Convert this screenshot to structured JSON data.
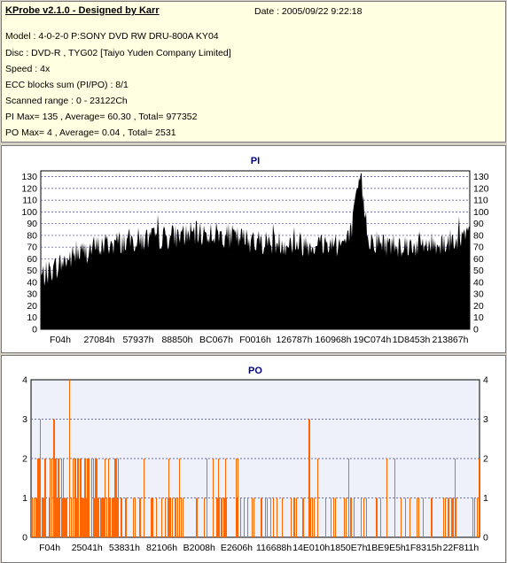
{
  "header": {
    "app_title": "KProbe v2.1.0 - Designed by Karr",
    "date": "Date : 2005/09/22 9:22:18",
    "lines": [
      "Model : 4-0-2-0 P:SONY     DVD RW DRU-800A  KY04",
      "Disc : DVD-R , TYG02 [Taiyo Yuden Company Limited]",
      "Speed : 4x",
      "ECC blocks sum (PI/PO) : 8/1",
      "Scanned range : 0 - 23122Ch",
      "PI Max= 135 , Average= 60.30 , Total= 977352",
      "PO Max= 4 , Average= 0.04 , Total= 2531"
    ]
  },
  "colors": {
    "pi_fill": "#000000",
    "po_fill": "#ff6600",
    "grid": "#4040a0",
    "title": "#000080",
    "plot_bg_po": "#eef0fa"
  },
  "chart_data": [
    {
      "type": "bar",
      "title": "PI",
      "ylim": [
        0,
        135
      ],
      "yticks": [
        0,
        10,
        20,
        30,
        40,
        50,
        60,
        70,
        80,
        90,
        100,
        110,
        120,
        130
      ],
      "xticks": [
        "F04h",
        "27084h",
        "57937h",
        "88850h",
        "BC067h",
        "F0016h",
        "126787h",
        "160968h",
        "19C074h",
        "1D8453h",
        "213867h"
      ],
      "x_range_hex": [
        "0h",
        "23122Ch"
      ],
      "grid": true,
      "profile": [
        [
          0.0,
          48
        ],
        [
          0.02,
          52
        ],
        [
          0.05,
          60
        ],
        [
          0.08,
          66
        ],
        [
          0.12,
          72
        ],
        [
          0.16,
          76
        ],
        [
          0.2,
          78
        ],
        [
          0.25,
          80
        ],
        [
          0.3,
          82
        ],
        [
          0.35,
          84
        ],
        [
          0.4,
          85
        ],
        [
          0.43,
          83
        ],
        [
          0.47,
          80
        ],
        [
          0.5,
          78
        ],
        [
          0.55,
          77
        ],
        [
          0.6,
          76
        ],
        [
          0.65,
          76
        ],
        [
          0.7,
          76
        ],
        [
          0.72,
          80
        ],
        [
          0.735,
          110
        ],
        [
          0.745,
          135
        ],
        [
          0.755,
          105
        ],
        [
          0.765,
          80
        ],
        [
          0.8,
          76
        ],
        [
          0.85,
          75
        ],
        [
          0.9,
          75
        ],
        [
          0.95,
          78
        ],
        [
          1.0,
          84
        ]
      ]
    },
    {
      "type": "bar",
      "title": "PO",
      "ylim": [
        0,
        4
      ],
      "yticks": [
        0,
        1,
        2,
        3,
        4
      ],
      "xticks": [
        "F04h",
        "25041h",
        "53831h",
        "82106h",
        "B2008h",
        "E2606h",
        "116688h",
        "14E010h",
        "1850E7h",
        "1BE9E5h",
        "1F8315h",
        "22F811h"
      ],
      "x_range_hex": [
        "0h",
        "23122Ch"
      ],
      "grid": true,
      "peaks": [
        [
          0.02,
          3
        ],
        [
          0.05,
          3
        ],
        [
          0.085,
          4
        ],
        [
          0.12,
          2
        ],
        [
          0.62,
          3
        ]
      ]
    }
  ]
}
